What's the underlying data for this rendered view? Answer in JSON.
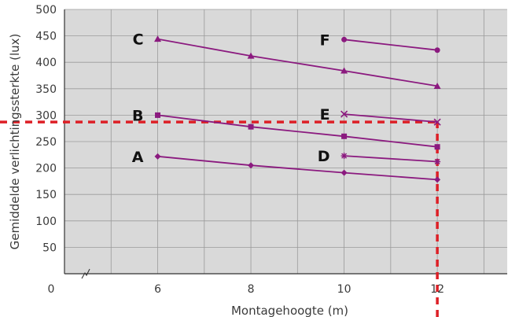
{
  "chart_data": {
    "type": "line",
    "xlabel": "Montagehoogte (m)",
    "ylabel": "Gemiddelde verlichtingssterkte (lux)",
    "xlim": [
      4,
      13.5
    ],
    "ylim": [
      0,
      500
    ],
    "x_origin_label": "0",
    "x_ticks": [
      6,
      8,
      10,
      12
    ],
    "y_ticks": [
      50,
      100,
      150,
      200,
      250,
      300,
      350,
      400,
      450,
      500
    ],
    "x_grid": [
      5,
      6,
      7,
      8,
      9,
      10,
      11,
      12,
      13
    ],
    "y_grid": [
      50,
      100,
      150,
      200,
      250,
      300,
      350,
      400,
      450,
      500
    ],
    "grid": true,
    "colors": {
      "plot_bg": "#d9d9d9",
      "grid": "#9a9a9a",
      "series": "#8b1a7f",
      "reference": "#dd1f26"
    },
    "series": [
      {
        "name": "A",
        "marker": "diamond",
        "x": [
          6,
          8,
          10,
          12
        ],
        "y": [
          222,
          205,
          191,
          178
        ]
      },
      {
        "name": "B",
        "marker": "square",
        "x": [
          6,
          8,
          10,
          12
        ],
        "y": [
          300,
          278,
          260,
          240
        ]
      },
      {
        "name": "C",
        "marker": "triangle",
        "x": [
          6,
          8,
          10,
          12
        ],
        "y": [
          444,
          412,
          384,
          355
        ]
      },
      {
        "name": "D",
        "marker": "star",
        "x": [
          10,
          12
        ],
        "y": [
          223,
          212
        ]
      },
      {
        "name": "E",
        "marker": "x",
        "x": [
          10,
          12
        ],
        "y": [
          302,
          287
        ]
      },
      {
        "name": "F",
        "marker": "circle",
        "x": [
          10,
          12
        ],
        "y": [
          443,
          423
        ]
      }
    ],
    "reference_lines": [
      {
        "orientation": "horizontal",
        "y": 287,
        "from_x": 4,
        "to_x": 12
      },
      {
        "orientation": "vertical",
        "x": 12,
        "from_y": 0,
        "to_y": 287
      }
    ]
  }
}
